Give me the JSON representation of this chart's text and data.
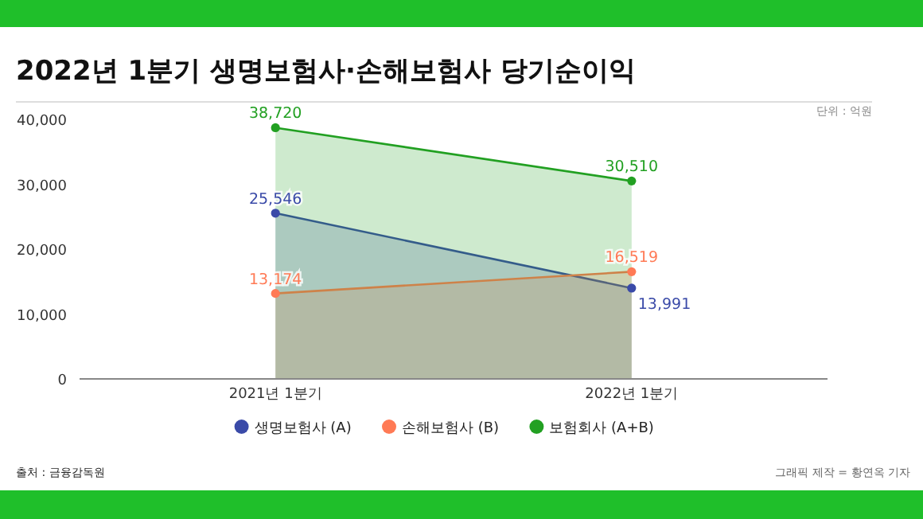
{
  "chart_data": {
    "type": "area",
    "title": "2022년 1분기 생명보험사·손해보험사 당기순이익",
    "categories": [
      "2021년 1분기",
      "2022년 1분기"
    ],
    "series": [
      {
        "name": "생명보험사 (A)",
        "color": "#3a4aa8",
        "values": [
          25546,
          13991
        ],
        "value_labels": [
          "25,546",
          "13,991"
        ]
      },
      {
        "name": "손해보험사 (B)",
        "color": "#ff7a55",
        "values": [
          13174,
          16519
        ],
        "value_labels": [
          "13,174",
          "16,519"
        ]
      },
      {
        "name": "보험회사 (A+B)",
        "color": "#22a022",
        "values": [
          38720,
          30510
        ],
        "value_labels": [
          "38,720",
          "30,510"
        ]
      }
    ],
    "ylim": [
      0,
      40000
    ],
    "yticks": [
      {
        "value": 0,
        "label": "0"
      },
      {
        "value": 10000,
        "label": "10,000"
      },
      {
        "value": 20000,
        "label": "20,000"
      },
      {
        "value": 30000,
        "label": "30,000"
      },
      {
        "value": 40000,
        "label": "40,000"
      }
    ],
    "marker": "circle",
    "legend": "bottom",
    "annotations": [
      "단위 : 억원",
      "출처 : 금융감독원",
      "그래픽 제작 = 황연옥 기자"
    ]
  }
}
